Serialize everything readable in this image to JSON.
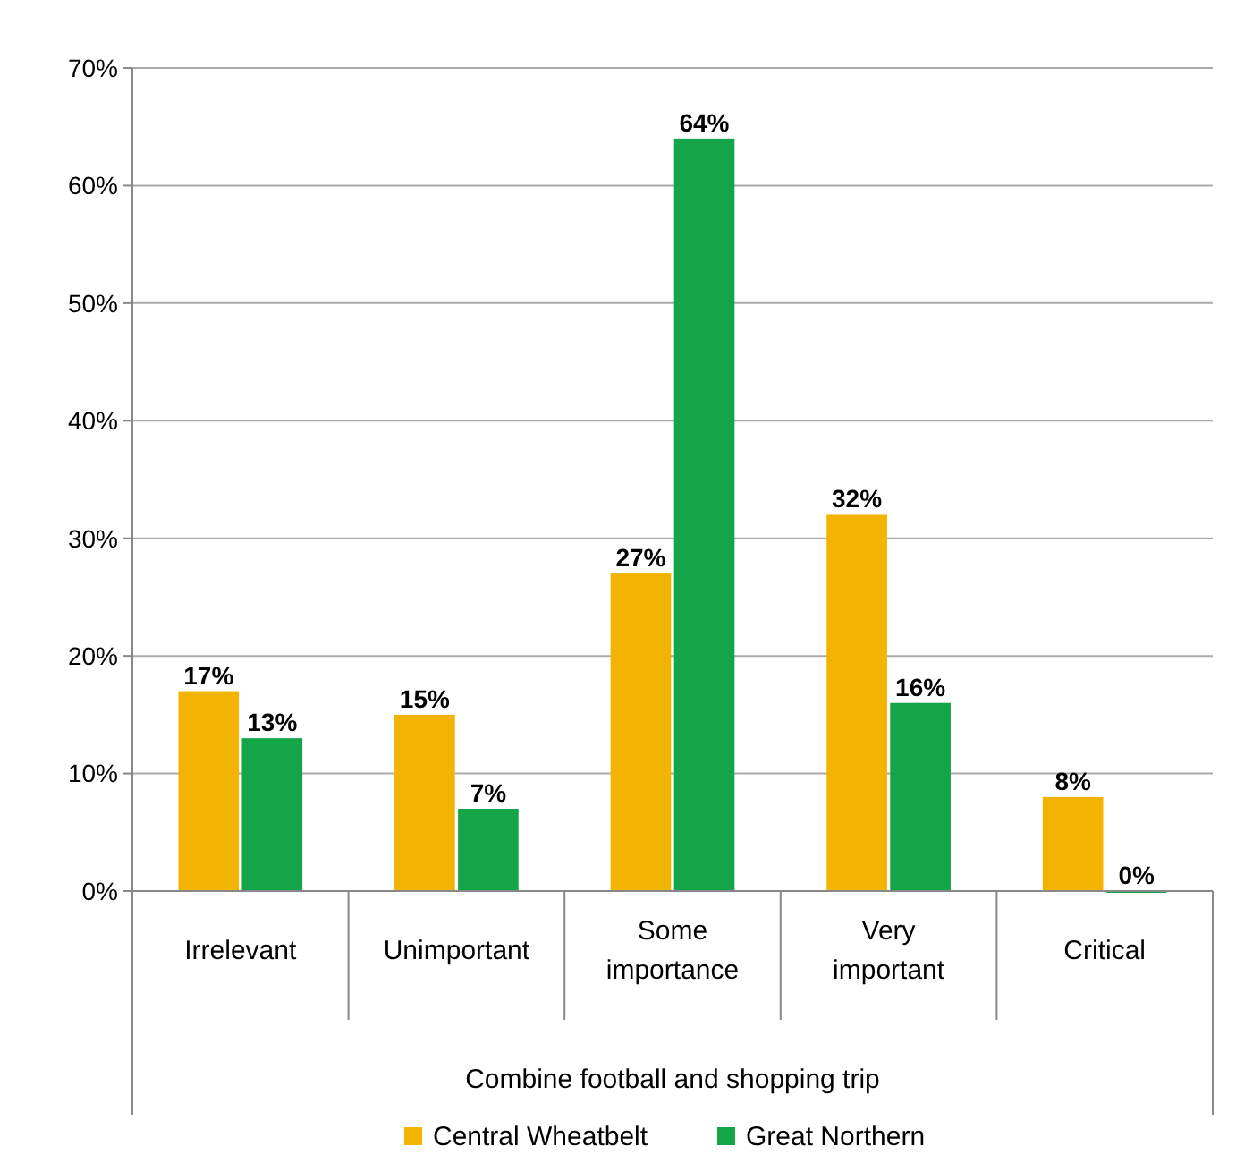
{
  "chart_data": {
    "type": "bar",
    "xlabel": "Combine football and shopping trip",
    "categories": [
      "Irrelevant",
      "Unimportant",
      "Some importance",
      "Very important",
      "Critical"
    ],
    "series": [
      {
        "name": "Central Wheatbelt",
        "color": "#f2b400",
        "values": [
          17,
          15,
          27,
          32,
          8
        ],
        "value_labels": [
          "17%",
          "15%",
          "27%",
          "32%",
          "8%"
        ]
      },
      {
        "name": "Great Northern",
        "color": "#14a548",
        "values": [
          13,
          7,
          64,
          16,
          0
        ],
        "value_labels": [
          "13%",
          "7%",
          "64%",
          "16%",
          "0%"
        ]
      }
    ],
    "ylim": [
      0,
      70
    ],
    "yticks": [
      {
        "value": 0,
        "label": "0%"
      },
      {
        "value": 10,
        "label": "10%"
      },
      {
        "value": 20,
        "label": "20%"
      },
      {
        "value": 30,
        "label": "30%"
      },
      {
        "value": 40,
        "label": "40%"
      },
      {
        "value": 50,
        "label": "50%"
      },
      {
        "value": 60,
        "label": "60%"
      },
      {
        "value": 70,
        "label": "70%"
      }
    ],
    "grid": "y",
    "legend": "bottom"
  }
}
